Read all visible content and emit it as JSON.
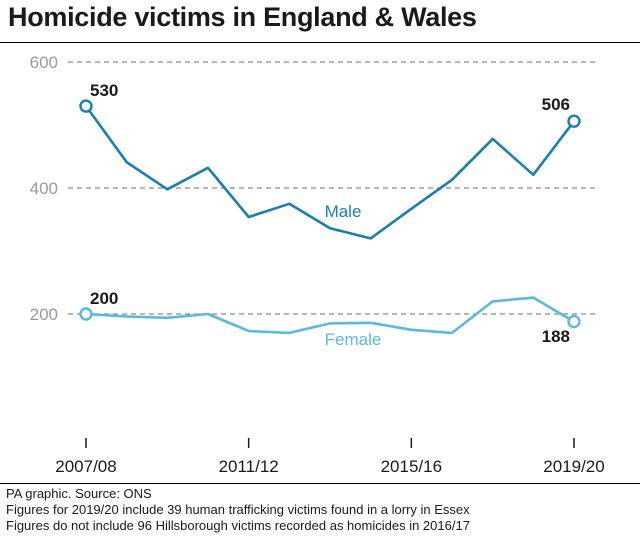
{
  "title": "Homicide victims in England & Wales",
  "chart_data": {
    "type": "line",
    "x": [
      "2007/08",
      "2008/09",
      "2009/10",
      "2010/11",
      "2011/12",
      "2012/13",
      "2013/14",
      "2014/15",
      "2015/16",
      "2016/17",
      "2017/18",
      "2018/19",
      "2019/20"
    ],
    "x_tick_labels": [
      "2007/08",
      "2011/12",
      "2015/16",
      "2019/20"
    ],
    "y_ticks": [
      "200",
      "400",
      "600"
    ],
    "ylim": [
      0,
      600
    ],
    "grid": "horizontal dashed",
    "series": [
      {
        "name": "Male",
        "color": "#1a7fb0",
        "values": [
          530,
          441,
          398,
          432,
          354,
          375,
          336,
          320,
          367,
          413,
          478,
          421,
          506
        ],
        "start_label": "530",
        "end_label": "506"
      },
      {
        "name": "Female",
        "color": "#5bb8e0",
        "values": [
          200,
          196,
          194,
          200,
          173,
          170,
          185,
          186,
          175,
          170,
          220,
          226,
          188
        ],
        "start_label": "200",
        "end_label": "188"
      }
    ]
  },
  "footer": {
    "source": "PA graphic. Source: ONS",
    "note1": "Figures for 2019/20 include 39 human trafficking victims found in a lorry in Essex",
    "note2": "Figures do not include 96 Hillsborough victims recorded as homicides in 2016/17"
  }
}
